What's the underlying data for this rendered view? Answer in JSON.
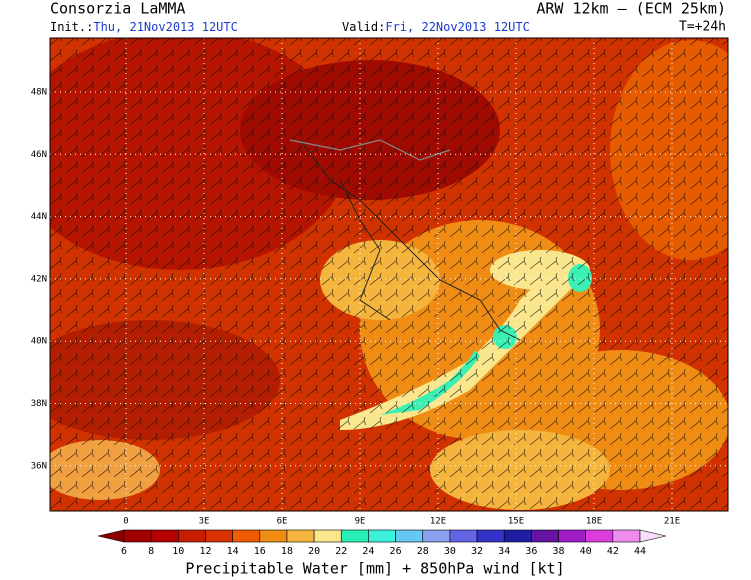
{
  "header": {
    "left_title": "Consorzia LaMMA",
    "right_title": "ARW 12km  –  (ECM 25km)",
    "init_label": "Init.:",
    "init_value": "Thu, 21Nov2013 12UTC",
    "valid_label": "Valid:",
    "valid_value": "Fri, 22Nov2013 12UTC",
    "lead_time": "T=+24h"
  },
  "map": {
    "lat_labels": [
      "48N",
      "46N",
      "44N",
      "42N",
      "40N",
      "38N",
      "36N"
    ],
    "lon_labels": [
      "0",
      "3E",
      "6E",
      "9E",
      "12E",
      "15E",
      "18E",
      "21E"
    ]
  },
  "colorbar": {
    "labels": [
      6,
      8,
      10,
      12,
      14,
      16,
      18,
      20,
      22,
      24,
      26,
      28,
      30,
      32,
      34,
      36,
      38,
      40,
      42,
      44
    ],
    "colors": [
      "#8c0000",
      "#a00000",
      "#b40000",
      "#c81e00",
      "#dc3200",
      "#f05a00",
      "#f08c14",
      "#f5b43c",
      "#fae68c",
      "#28f0b4",
      "#3cf0dc",
      "#64c8f0",
      "#8ca0f0",
      "#6464e6",
      "#3232c8",
      "#1e1ea0",
      "#6414a0",
      "#a01ec8",
      "#dc3cdc",
      "#f08cf0",
      "#fadcfa"
    ],
    "title": "Precipitable Water [mm] + 850hPa wind [kt]"
  }
}
